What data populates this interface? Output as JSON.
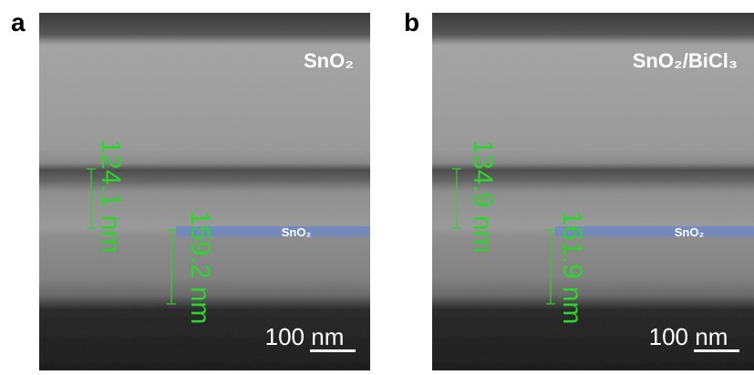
{
  "panels": [
    {
      "label": "a",
      "title": "SnO₂",
      "measurements": [
        "124.1 nm",
        "159.2 nm"
      ],
      "layer_label": "SnO₂",
      "scale_bar": "100 nm"
    },
    {
      "label": "b",
      "title": "SnO₂/BiCl₃",
      "measurements": [
        "134.9 nm",
        "161.9 nm"
      ],
      "layer_label": "SnO₂",
      "scale_bar": "100 nm"
    }
  ]
}
